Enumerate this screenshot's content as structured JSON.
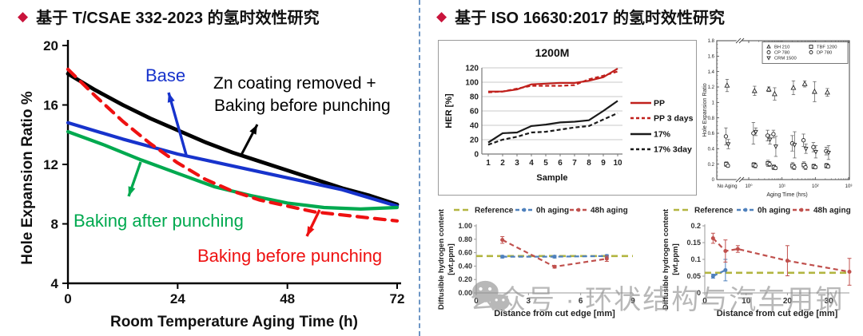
{
  "page": {
    "bullet_glyph": "◆",
    "left_title": "基于 T/CSAE 332-2023 的氢时效性研究",
    "right_title": "基于 ISO 16630:2017 的氢时效性研究",
    "watermark_text": "公众号 · 环状结构与汽车用钢",
    "colors": {
      "title_bullet": "#c9143c",
      "divider": "#6d96c5",
      "watermark": "#8e8e8e"
    }
  },
  "chart_data": [
    {
      "id": "tcsae-her-aging",
      "type": "line",
      "xlabel": "Room Temperature Aging Time  (h)",
      "ylabel": "Hole Expansion Ratio %",
      "xlim": [
        0,
        72
      ],
      "ylim": [
        4,
        20
      ],
      "xticks": [
        0,
        24,
        48,
        72
      ],
      "yticks": [
        4,
        8,
        12,
        16,
        20
      ],
      "grid": false,
      "series": [
        {
          "name": "Zn coating removed + Baking before punching",
          "color": "#000000",
          "dash": false,
          "x": [
            0,
            6,
            12,
            18,
            24,
            30,
            36,
            42,
            48,
            54,
            60,
            66,
            72
          ],
          "y": [
            18.1,
            17.0,
            16.0,
            15.1,
            14.3,
            13.5,
            12.8,
            12.2,
            11.6,
            11.0,
            10.4,
            9.9,
            9.3
          ]
        },
        {
          "name": "Base",
          "color": "#1733cc",
          "dash": false,
          "x": [
            0,
            12,
            24,
            36,
            48,
            60,
            72
          ],
          "y": [
            14.8,
            13.7,
            12.7,
            11.9,
            11.1,
            10.3,
            9.2
          ]
        },
        {
          "name": "Baking after punching",
          "color": "#00a94f",
          "dash": false,
          "x": [
            0,
            8,
            16,
            24,
            32,
            40,
            48,
            56,
            64,
            72
          ],
          "y": [
            14.2,
            13.3,
            12.3,
            11.4,
            10.5,
            9.9,
            9.4,
            9.1,
            9.0,
            9.1
          ]
        },
        {
          "name": "Baking before punching",
          "color": "#ee1111",
          "dash": true,
          "x": [
            0,
            6,
            12,
            18,
            24,
            30,
            36,
            42,
            48,
            54,
            60,
            66,
            72
          ],
          "y": [
            18.4,
            16.6,
            14.9,
            13.4,
            12.1,
            11.0,
            10.2,
            9.6,
            9.2,
            8.8,
            8.6,
            8.4,
            8.2
          ]
        }
      ],
      "annotations": [
        {
          "text": "Base",
          "color": "#1733cc"
        },
        {
          "text": "Zn coating removed +",
          "color": "#000000"
        },
        {
          "text": "Baking before punching",
          "color": "#000000"
        },
        {
          "text": "Baking after punching",
          "color": "#00a94f"
        },
        {
          "text": "Baking before punching",
          "color": "#ee1111"
        }
      ]
    },
    {
      "id": "iso-1200m-her",
      "type": "line",
      "title": "1200M",
      "xlabel": "Sample",
      "ylabel": "HER [%]",
      "categories": [
        1,
        2,
        3,
        4,
        5,
        6,
        7,
        8,
        9,
        10
      ],
      "ylim": [
        0,
        120
      ],
      "yticks": [
        0,
        20,
        40,
        60,
        80,
        100,
        120
      ],
      "grid": true,
      "legend_position": "right",
      "series": [
        {
          "name": "PP",
          "color": "#c0201c",
          "dash": false,
          "values": [
            87,
            87,
            90,
            97,
            98,
            99,
            99,
            102,
            107,
            119
          ]
        },
        {
          "name": "PP 3 days",
          "color": "#c0201c",
          "dash": true,
          "values": [
            86,
            87,
            91,
            95,
            95,
            95,
            96,
            104,
            109,
            115
          ]
        },
        {
          "name": "17%",
          "color": "#1a1a1a",
          "dash": false,
          "values": [
            16,
            29,
            30,
            39,
            41,
            44,
            45,
            47,
            60,
            74
          ]
        },
        {
          "name": "17% 3day",
          "color": "#1a1a1a",
          "dash": true,
          "values": [
            13,
            20,
            24,
            30,
            31,
            34,
            37,
            39,
            48,
            57
          ]
        }
      ]
    },
    {
      "id": "iso-her-scatter",
      "type": "scatter",
      "xlabel": "Aging Time (hrs)",
      "ylabel": "Hole Expansion Ratio",
      "x_axis_note": "log scale with axis break after No Aging",
      "x_categories": [
        "No Aging",
        "10⁰",
        "10¹",
        "10²",
        "10³"
      ],
      "x_hours": [
        0,
        1.5,
        4,
        6,
        22,
        48,
        95,
        230
      ],
      "ylim": [
        0,
        1.8
      ],
      "yticks": [
        "0",
        "0.2",
        "0.4",
        "0.6",
        "0.8",
        "1",
        "1.2",
        "1.4",
        "1.6",
        "1.8"
      ],
      "legend_columns": [
        [
          "BH 210",
          "CP 780",
          "CRM 1500"
        ],
        [
          "TBF 1200",
          "DP 780"
        ]
      ],
      "series": [
        {
          "name": "BH 210",
          "marker": "triangle-up",
          "y": [
            1.22,
            1.15,
            1.17,
            1.11,
            1.19,
            1.24,
            1.14,
            1.13
          ],
          "err": [
            0.08,
            0.06,
            0.03,
            0.08,
            0.09,
            0.04,
            0.13,
            0.05
          ]
        },
        {
          "name": "CP 780",
          "marker": "circle",
          "y": [
            0.56,
            0.6,
            0.57,
            0.59,
            0.47,
            0.51,
            0.42,
            0.37
          ],
          "err": [
            0.11,
            0.14,
            0.07,
            0.05,
            0.1,
            0.08,
            0.06,
            0.05
          ]
        },
        {
          "name": "CRM 1500",
          "marker": "triangle-down",
          "y": [
            0.46,
            0.62,
            0.52,
            0.43,
            0.45,
            0.4,
            0.36,
            0.35
          ],
          "err": [
            0.06,
            0.05,
            0.06,
            0.13,
            0.17,
            0.06,
            0.08,
            0.09
          ]
        },
        {
          "name": "TBF 1200",
          "marker": "square",
          "y": [
            0.2,
            0.19,
            0.21,
            0.16,
            0.18,
            0.19,
            0.17,
            0.18
          ],
          "err": [
            0.03,
            0.03,
            0.04,
            0.03,
            0.04,
            0.04,
            0.03,
            0.03
          ]
        },
        {
          "name": "DP 780",
          "marker": "circle",
          "y": [
            0.18,
            0.18,
            0.2,
            0.15,
            0.16,
            0.16,
            0.16,
            0.17
          ],
          "err": [
            0.02,
            0.03,
            0.03,
            0.02,
            0.03,
            0.03,
            0.02,
            0.02
          ]
        }
      ]
    },
    {
      "id": "hydrogen-profile-a",
      "type": "line",
      "xlabel": "Distance from cut edge [mm]",
      "ylabel": "Diffusible hydrogen content [wt.ppm]",
      "ylabel_lines": [
        "Diffusible hydrogen content",
        "[wt.ppm]"
      ],
      "xlim": [
        0,
        9
      ],
      "xticks": [
        0,
        3,
        6,
        9
      ],
      "ylim": [
        0,
        1.0
      ],
      "yticks": [
        "0.00",
        "0.20",
        "0.40",
        "0.60",
        "0.80",
        "1.00"
      ],
      "series": [
        {
          "name": "Reference",
          "color": "#b2b540",
          "dash": true,
          "const": 0.55
        },
        {
          "name": "0h aging",
          "color": "#4f81bd",
          "dash": true,
          "marker": true,
          "x": [
            1.5,
            4.5,
            7.5
          ],
          "y": [
            0.54,
            0.54,
            0.55
          ],
          "err": [
            0.02,
            0.02,
            0.02
          ]
        },
        {
          "name": "48h aging",
          "color": "#c0504d",
          "dash": true,
          "marker": true,
          "x": [
            1.5,
            4.5,
            7.5
          ],
          "y": [
            0.79,
            0.39,
            0.51
          ],
          "err": [
            0.05,
            0.02,
            0.04
          ]
        }
      ]
    },
    {
      "id": "hydrogen-profile-b",
      "type": "line",
      "xlabel": "Distance from cut edge [mm]",
      "ylabel": "Diffusible hydrogen content [wt.ppm]",
      "ylabel_lines": [
        "Diffusible hydrogen content",
        "[wt.ppm]"
      ],
      "xlim": [
        0,
        35
      ],
      "xticks": [
        0,
        10,
        20,
        30
      ],
      "ylim": [
        0,
        0.2
      ],
      "yticks": [
        "0",
        "0.05",
        "0.1",
        "0.15",
        "0.2"
      ],
      "series": [
        {
          "name": "Reference",
          "color": "#b2b540",
          "dash": true,
          "const": 0.06
        },
        {
          "name": "0h aging",
          "color": "#4f81bd",
          "dash": true,
          "marker": true,
          "x": [
            2,
            5
          ],
          "y": [
            0.05,
            0.068
          ],
          "err": [
            0.006,
            0.032
          ]
        },
        {
          "name": "48h aging",
          "color": "#c0504d",
          "dash": true,
          "marker": true,
          "x": [
            2,
            5,
            8,
            20,
            35
          ],
          "y": [
            0.163,
            0.125,
            0.131,
            0.096,
            0.063
          ],
          "err": [
            0.015,
            0.033,
            0.01,
            0.045,
            0.04
          ]
        }
      ]
    }
  ]
}
